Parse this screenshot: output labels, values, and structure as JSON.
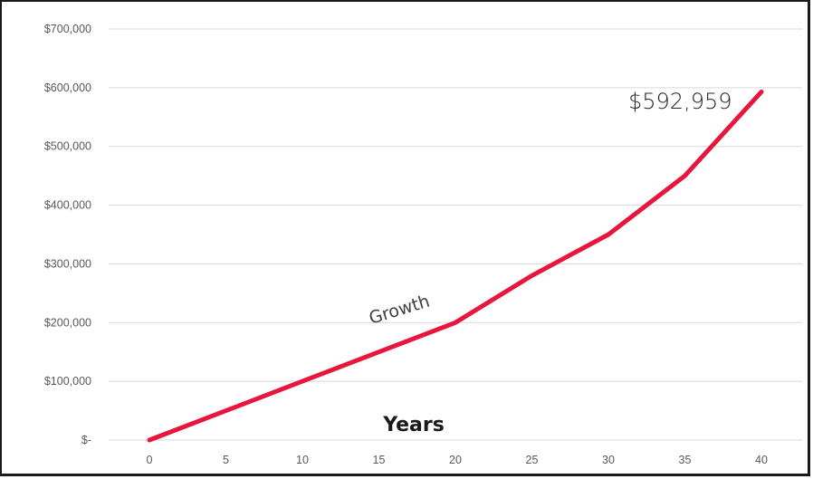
{
  "chart_data": {
    "type": "line",
    "x": [
      0,
      5,
      10,
      15,
      20,
      25,
      30,
      35,
      40
    ],
    "x_tick_labels": [
      "0",
      "5",
      "10",
      "15",
      "20",
      "25",
      "30",
      "35",
      "40"
    ],
    "series": [
      {
        "values": [
          0,
          50000,
          100000,
          150000,
          200000,
          280000,
          350000,
          450000,
          592959
        ],
        "color": "#e8163c"
      }
    ],
    "y_ticks": [
      0,
      100000,
      200000,
      300000,
      400000,
      500000,
      600000,
      700000
    ],
    "y_tick_labels": [
      "$-",
      "$100,000",
      "$200,000",
      "$300,000",
      "$400,000",
      "$500,000",
      "$600,000",
      "$700,000"
    ],
    "ylim": [
      0,
      700000
    ],
    "xlim": [
      0,
      40
    ],
    "xlabel": "Years",
    "ylabel": "",
    "title": "",
    "grid": true,
    "legend": "none",
    "annotations": [
      {
        "text": "$592,959",
        "x": 40,
        "y": 592959
      },
      {
        "text": "Growth",
        "x": 20,
        "y": 200000
      }
    ]
  }
}
